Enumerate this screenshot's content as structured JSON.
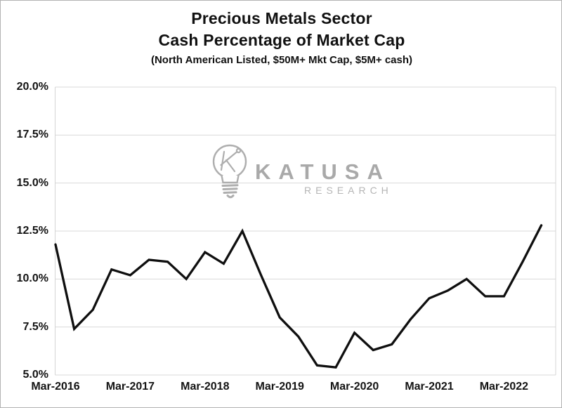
{
  "colors": {
    "line": "#0f0f0f",
    "grid": "#d9d9d9",
    "plot_border": "#d4d4d4",
    "axis_text": "#141414",
    "watermark": "#aeaeae",
    "frame_border": "#b3b3b3",
    "background": "#ffffff"
  },
  "header": {
    "title_line1": "Precious Metals Sector",
    "title_line2": "Cash Percentage of Market Cap",
    "subtitle": "(North American Listed, $50M+ Mkt Cap, $5M+ cash)"
  },
  "watermark": {
    "brand": "KATUSA",
    "subbrand": "RESEARCH"
  },
  "chart_data": {
    "type": "line",
    "title": "Precious Metals Sector Cash Percentage of Market Cap",
    "subtitle": "(North American Listed, $50M+ Mkt Cap, $5M+ cash)",
    "series_name": "Cash percentage of market cap",
    "x": [
      "Mar-2016",
      "Jun-2016",
      "Sep-2016",
      "Dec-2016",
      "Mar-2017",
      "Jun-2017",
      "Sep-2017",
      "Dec-2017",
      "Mar-2018",
      "Jun-2018",
      "Sep-2018",
      "Dec-2018",
      "Mar-2019",
      "Jun-2019",
      "Sep-2019",
      "Dec-2019",
      "Mar-2020",
      "Jun-2020",
      "Sep-2020",
      "Dec-2020",
      "Mar-2021",
      "Jun-2021",
      "Sep-2021",
      "Dec-2021",
      "Mar-2022",
      "Jun-2022",
      "Sep-2022"
    ],
    "values": [
      11.8,
      7.4,
      8.4,
      10.5,
      10.2,
      11.0,
      10.9,
      10.0,
      11.4,
      10.8,
      12.5,
      10.2,
      8.0,
      7.0,
      5.5,
      5.4,
      7.2,
      6.3,
      6.6,
      7.9,
      9.0,
      9.4,
      10.0,
      9.1,
      9.1,
      10.9,
      12.8
    ],
    "unit": "%",
    "xlabel": "",
    "ylabel": "",
    "ylim": [
      5,
      20
    ],
    "y_ticks": {
      "values": [
        20,
        17.5,
        15,
        12.5,
        10,
        7.5,
        5
      ],
      "labels": [
        "20.0%",
        "17.5%",
        "15.0%",
        "12.5%",
        "10.0%",
        "7.5%",
        "5.0%"
      ]
    },
    "x_ticks": {
      "indices": [
        0,
        4,
        8,
        12,
        16,
        20,
        24
      ],
      "labels": [
        "Mar-2016",
        "Mar-2017",
        "Mar-2018",
        "Mar-2019",
        "Mar-2020",
        "Mar-2021",
        "Mar-2022"
      ]
    },
    "grid": "horizontal",
    "legend": "none"
  }
}
